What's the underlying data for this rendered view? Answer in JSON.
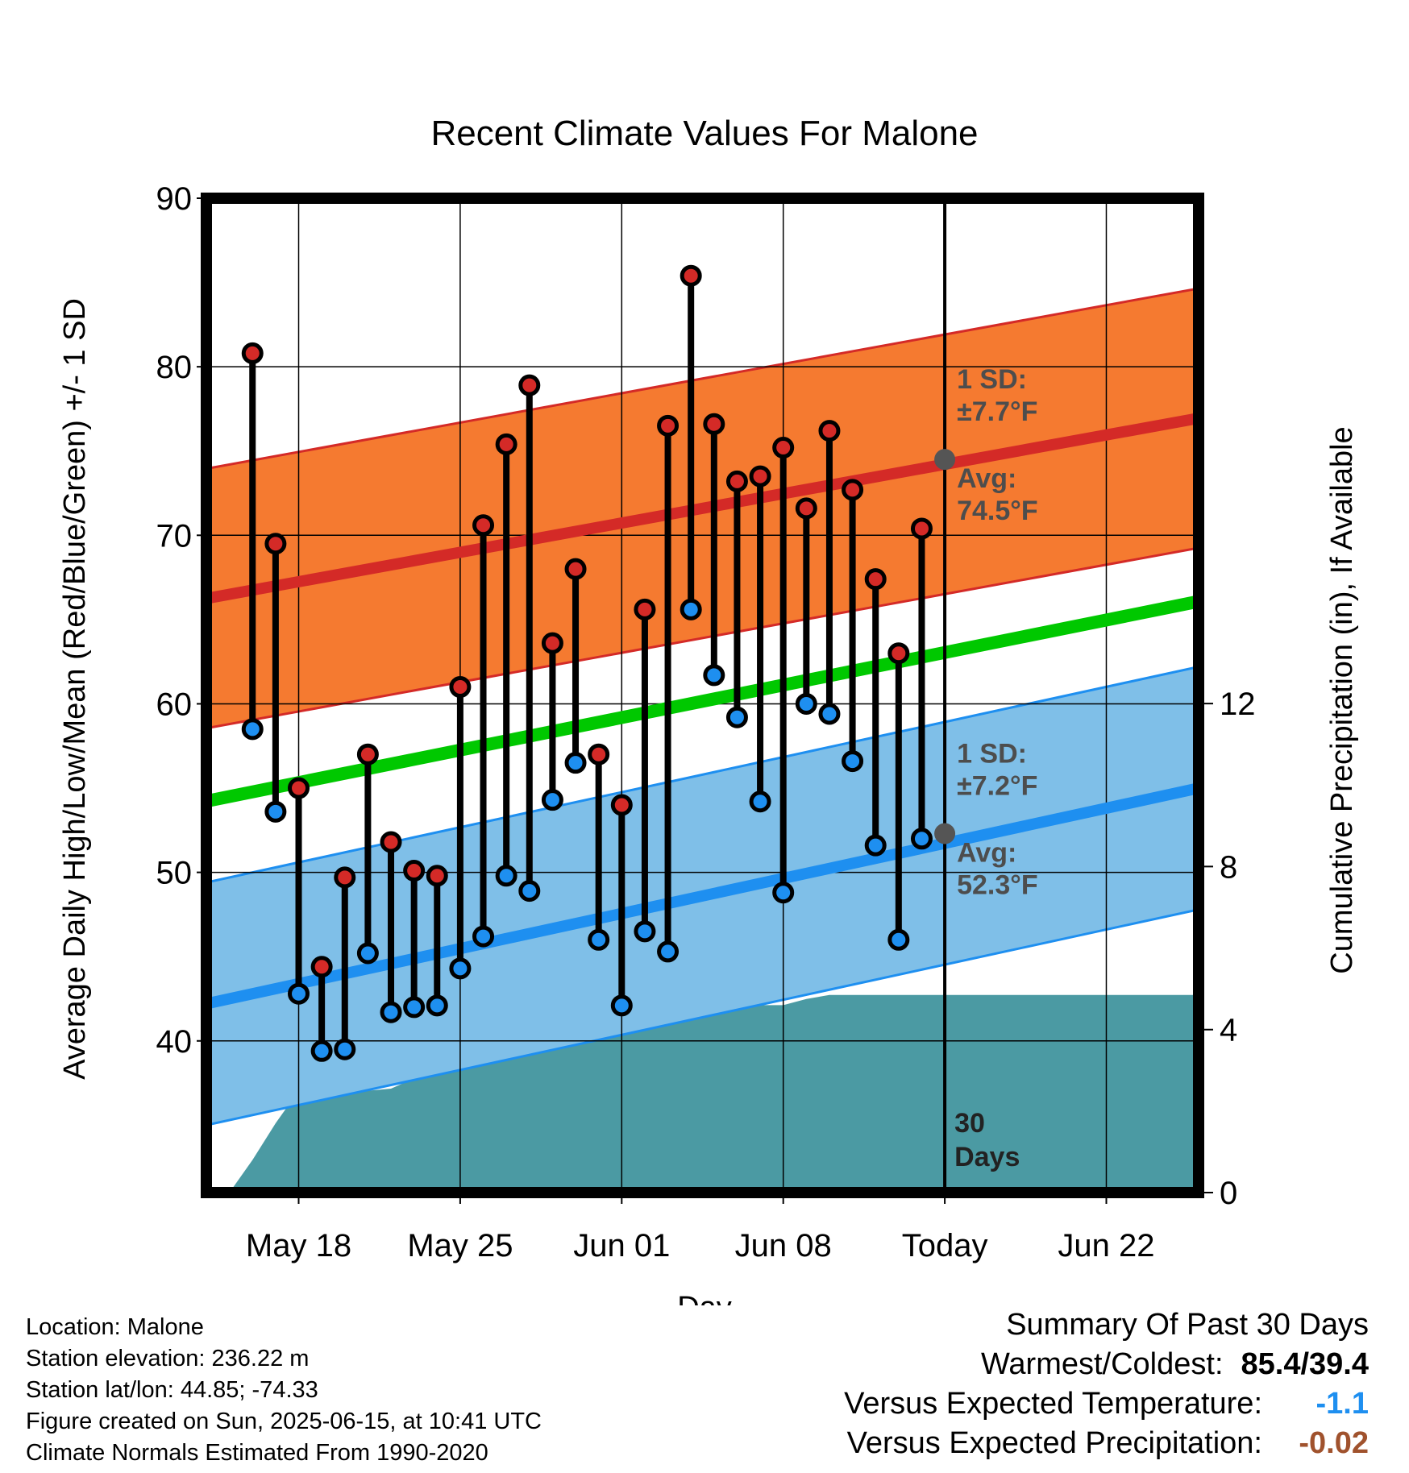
{
  "chart_data": {
    "type": "line",
    "title": "Recent Climate Values For Malone",
    "xlabel": "Day",
    "ylabel": "Average Daily High/Low/Mean (Red/Blue/Green) +/- 1 SD",
    "y2label": "Cumulative Precipitation (in), If Available",
    "ylim": [
      31,
      90
    ],
    "y2lim": [
      0,
      24.4
    ],
    "yticks": [
      40,
      50,
      60,
      70,
      80,
      90
    ],
    "y2ticks": [
      0,
      4,
      8,
      12
    ],
    "xlim": [
      "2025-05-14",
      "2025-06-26"
    ],
    "xticks": [
      {
        "date": "2025-05-18",
        "label": "May 18"
      },
      {
        "date": "2025-05-25",
        "label": "May 25"
      },
      {
        "date": "2025-06-01",
        "label": "Jun 01"
      },
      {
        "date": "2025-06-08",
        "label": "Jun 08"
      },
      {
        "date": "2025-06-15",
        "label": "Today"
      },
      {
        "date": "2025-06-22",
        "label": "Jun 22"
      }
    ],
    "today": "2025-06-15",
    "window_label": "30\nDays",
    "normal_high": {
      "start": 66.5,
      "end": 76.7,
      "sd": 7.7,
      "avg_today": 74.5
    },
    "normal_low": {
      "start": 42.5,
      "end": 54.7,
      "sd": 7.2,
      "avg_today": 52.3
    },
    "normal_mean": {
      "start": 54.5,
      "end": 65.8
    },
    "annotations": {
      "high_sd": "1 SD:\n±7.7°F",
      "high_avg": "Avg:\n74.5°F",
      "low_sd": "1 SD:\n±7.2°F",
      "low_avg": "Avg:\n52.3°F"
    },
    "series": [
      {
        "name": "High",
        "dates": [
          "2025-05-16",
          "2025-05-17",
          "2025-05-18",
          "2025-05-19",
          "2025-05-20",
          "2025-05-21",
          "2025-05-22",
          "2025-05-23",
          "2025-05-24",
          "2025-05-25",
          "2025-05-26",
          "2025-05-27",
          "2025-05-28",
          "2025-05-29",
          "2025-05-30",
          "2025-05-31",
          "2025-06-01",
          "2025-06-02",
          "2025-06-03",
          "2025-06-04",
          "2025-06-05",
          "2025-06-06",
          "2025-06-07",
          "2025-06-08",
          "2025-06-09",
          "2025-06-10",
          "2025-06-11",
          "2025-06-12",
          "2025-06-13",
          "2025-06-14"
        ],
        "values": [
          80.8,
          69.5,
          55.0,
          44.4,
          49.7,
          57.0,
          51.8,
          50.1,
          49.8,
          61.0,
          70.6,
          75.4,
          78.9,
          63.6,
          68.0,
          57.0,
          54.0,
          65.6,
          76.5,
          85.4,
          76.6,
          73.2,
          73.5,
          75.2,
          71.6,
          76.2,
          72.7,
          67.4,
          63.0,
          70.4
        ]
      },
      {
        "name": "Low",
        "dates": [
          "2025-05-16",
          "2025-05-17",
          "2025-05-18",
          "2025-05-19",
          "2025-05-20",
          "2025-05-21",
          "2025-05-22",
          "2025-05-23",
          "2025-05-24",
          "2025-05-25",
          "2025-05-26",
          "2025-05-27",
          "2025-05-28",
          "2025-05-29",
          "2025-05-30",
          "2025-05-31",
          "2025-06-01",
          "2025-06-02",
          "2025-06-03",
          "2025-06-04",
          "2025-06-05",
          "2025-06-06",
          "2025-06-07",
          "2025-06-08",
          "2025-06-09",
          "2025-06-10",
          "2025-06-11",
          "2025-06-12",
          "2025-06-13",
          "2025-06-14"
        ],
        "values": [
          58.5,
          53.6,
          42.8,
          39.4,
          39.5,
          45.2,
          41.7,
          42.0,
          42.1,
          44.3,
          46.2,
          49.8,
          48.9,
          54.3,
          56.5,
          46.0,
          42.1,
          46.5,
          45.3,
          65.6,
          61.7,
          59.2,
          54.2,
          48.8,
          60.0,
          59.4,
          56.6,
          51.6,
          46.0,
          52.0
        ]
      },
      {
        "name": "Cumulative Precipitation",
        "dates": [
          "2025-05-15",
          "2025-05-16",
          "2025-05-17",
          "2025-05-18",
          "2025-05-19",
          "2025-05-20",
          "2025-05-21",
          "2025-05-22",
          "2025-05-23",
          "2025-05-24",
          "2025-05-25",
          "2025-05-26",
          "2025-05-27",
          "2025-05-28",
          "2025-05-29",
          "2025-05-30",
          "2025-05-31",
          "2025-06-01",
          "2025-06-02",
          "2025-06-03",
          "2025-06-04",
          "2025-06-05",
          "2025-06-06",
          "2025-06-07",
          "2025-06-08",
          "2025-06-09",
          "2025-06-10",
          "2025-06-11",
          "2025-06-12",
          "2025-06-13",
          "2025-06-14",
          "2025-06-15",
          "2025-06-26"
        ],
        "values": [
          0,
          0.8,
          1.7,
          2.5,
          2.5,
          2.5,
          2.5,
          2.55,
          2.8,
          3.3,
          3.3,
          3.4,
          3.4,
          3.4,
          3.7,
          3.8,
          4.6,
          4.6,
          4.6,
          4.6,
          4.6,
          4.6,
          4.6,
          4.6,
          4.6,
          4.75,
          4.85,
          4.85,
          4.85,
          4.85,
          4.85,
          4.85,
          4.85
        ]
      }
    ],
    "colors": {
      "high_band": "#f57a30",
      "high_line": "#d42a27",
      "mean_line": "#00c800",
      "low_band": "#7fbfe8",
      "low_line": "#1e8ff0",
      "precip": "#4b9aa3",
      "high_marker": "#d42a27",
      "low_marker": "#1e8ff0"
    }
  },
  "info": {
    "location": "Location: Malone",
    "elevation": "Station elevation: 236.22 m",
    "latlon": "Station lat/lon: 44.85; -74.33",
    "created": "Figure created on Sun, 2025-06-15, at 10:41 UTC",
    "normals": "Climate Normals Estimated From 1990-2020"
  },
  "summary": {
    "title": "Summary Of Past 30 Days",
    "warmest_label": "Warmest/Coldest:",
    "warmest_value": "85.4/39.4",
    "temp_label": "Versus Expected Temperature:",
    "temp_value": "-1.1",
    "temp_color": "#1e8ff0",
    "precip_label": "Versus Expected Precipitation:",
    "precip_value": "-0.02",
    "precip_color": "#a0522d"
  }
}
